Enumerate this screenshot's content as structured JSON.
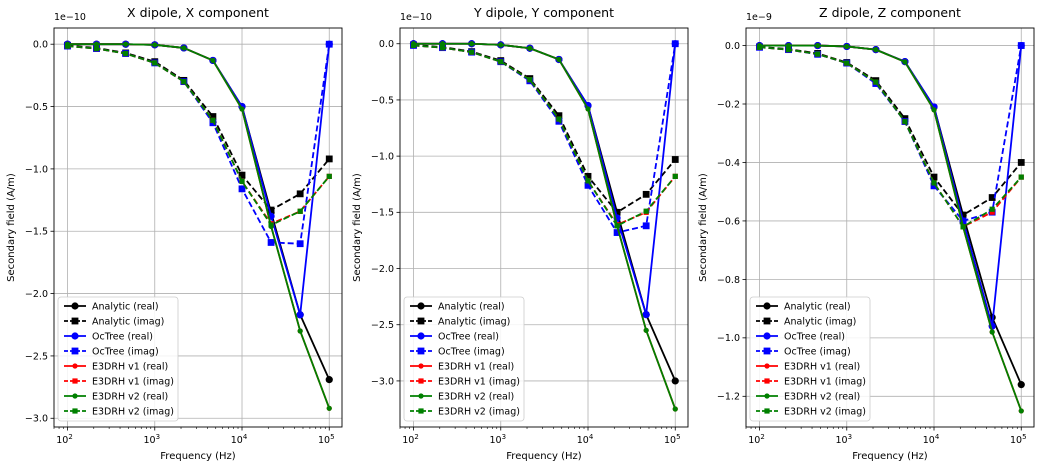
{
  "chart_data": [
    {
      "type": "line",
      "title": "X dipole, X component",
      "xlabel": "Frequency (Hz)",
      "ylabel": "Secondary field (A/m)",
      "xscale": "log",
      "xlim": [
        70,
        140000
      ],
      "ylim": [
        -3.07,
        0.13
      ],
      "scale_label": "1e−10",
      "xticks": [
        {
          "v": 100,
          "base": "10",
          "exp": "2"
        },
        {
          "v": 1000,
          "base": "10",
          "exp": "3"
        },
        {
          "v": 10000,
          "base": "10",
          "exp": "4"
        },
        {
          "v": 100000,
          "base": "10",
          "exp": "5"
        }
      ],
      "yticks": [
        {
          "v": 0,
          "label": "0.0"
        },
        {
          "v": -0.5,
          "label": "−0.5"
        },
        {
          "v": -1.0,
          "label": "−1.0"
        },
        {
          "v": -1.5,
          "label": "−1.5"
        },
        {
          "v": -2.0,
          "label": "−2.0"
        },
        {
          "v": -2.5,
          "label": "−2.5"
        },
        {
          "v": -3.0,
          "label": "−3.0"
        }
      ],
      "grid": true,
      "legend_position": "lower left",
      "x": [
        100,
        215,
        464,
        1000,
        2154,
        4642,
        10000,
        21544,
        46416,
        100000
      ],
      "series": [
        {
          "name": "Analytic (real)",
          "color": "#000000",
          "linestyle": "solid",
          "marker": "circle",
          "values": [
            0.0,
            0.0,
            0.0,
            -0.005,
            -0.03,
            -0.13,
            -0.5,
            -1.35,
            -2.17,
            -2.69
          ]
        },
        {
          "name": "Analytic (imag)",
          "color": "#000000",
          "linestyle": "dashed",
          "marker": "square",
          "values": [
            -0.01,
            -0.03,
            -0.07,
            -0.14,
            -0.29,
            -0.58,
            -1.05,
            -1.33,
            -1.2,
            -0.92
          ]
        },
        {
          "name": "OcTree (real)",
          "color": "#0000ff",
          "linestyle": "solid",
          "marker": "circle",
          "values": [
            0.0,
            0.0,
            0.0,
            -0.005,
            -0.03,
            -0.13,
            -0.5,
            -1.38,
            -2.17,
            0.0
          ]
        },
        {
          "name": "OcTree (imag)",
          "color": "#0000ff",
          "linestyle": "dashed",
          "marker": "square",
          "values": [
            -0.015,
            -0.035,
            -0.075,
            -0.15,
            -0.3,
            -0.63,
            -1.16,
            -1.59,
            -1.6,
            0.0
          ]
        },
        {
          "name": "E3DRH v1 (real)",
          "color": "#ff0000",
          "linestyle": "solid",
          "marker": "circle",
          "values": [
            0.0,
            0.0,
            0.0,
            -0.005,
            -0.03,
            -0.13,
            -0.52,
            -1.46,
            -2.3,
            -2.92
          ]
        },
        {
          "name": "E3DRH v1 (imag)",
          "color": "#ff0000",
          "linestyle": "dashed",
          "marker": "square",
          "values": [
            -0.015,
            -0.035,
            -0.075,
            -0.15,
            -0.3,
            -0.61,
            -1.1,
            -1.44,
            -1.34,
            -1.06
          ]
        },
        {
          "name": "E3DRH v2 (real)",
          "color": "#008000",
          "linestyle": "solid",
          "marker": "circle",
          "values": [
            0.0,
            0.0,
            0.0,
            -0.005,
            -0.03,
            -0.13,
            -0.52,
            -1.46,
            -2.3,
            -2.92
          ]
        },
        {
          "name": "E3DRH v2 (imag)",
          "color": "#008000",
          "linestyle": "dashed",
          "marker": "square",
          "values": [
            -0.015,
            -0.035,
            -0.075,
            -0.15,
            -0.3,
            -0.61,
            -1.1,
            -1.45,
            -1.34,
            -1.06
          ]
        }
      ]
    },
    {
      "type": "line",
      "title": "Y dipole, Y component",
      "xlabel": "Frequency (Hz)",
      "ylabel": "Secondary field (A/m)",
      "xscale": "log",
      "xlim": [
        70,
        140000
      ],
      "ylim": [
        -3.41,
        0.14
      ],
      "scale_label": "1e−10",
      "xticks": [
        {
          "v": 100,
          "base": "10",
          "exp": "2"
        },
        {
          "v": 1000,
          "base": "10",
          "exp": "3"
        },
        {
          "v": 10000,
          "base": "10",
          "exp": "4"
        },
        {
          "v": 100000,
          "base": "10",
          "exp": "5"
        }
      ],
      "yticks": [
        {
          "v": 0,
          "label": "0.0"
        },
        {
          "v": -0.5,
          "label": "−0.5"
        },
        {
          "v": -1.0,
          "label": "−1.0"
        },
        {
          "v": -1.5,
          "label": "−1.5"
        },
        {
          "v": -2.0,
          "label": "−2.0"
        },
        {
          "v": -2.5,
          "label": "−2.5"
        },
        {
          "v": -3.0,
          "label": "−3.0"
        }
      ],
      "grid": true,
      "legend_position": "lower left",
      "x": [
        100,
        215,
        464,
        1000,
        2154,
        4642,
        10000,
        21544,
        46416,
        100000
      ],
      "series": [
        {
          "name": "Analytic (real)",
          "color": "#000000",
          "linestyle": "solid",
          "marker": "circle",
          "values": [
            0.0,
            0.0,
            0.0,
            -0.01,
            -0.04,
            -0.14,
            -0.55,
            -1.5,
            -2.41,
            -3.0
          ]
        },
        {
          "name": "Analytic (imag)",
          "color": "#000000",
          "linestyle": "dashed",
          "marker": "square",
          "values": [
            -0.01,
            -0.03,
            -0.07,
            -0.15,
            -0.31,
            -0.64,
            -1.18,
            -1.5,
            -1.34,
            -1.03
          ]
        },
        {
          "name": "OcTree (real)",
          "color": "#0000ff",
          "linestyle": "solid",
          "marker": "circle",
          "values": [
            0.0,
            0.0,
            0.0,
            -0.01,
            -0.04,
            -0.14,
            -0.55,
            -1.55,
            -2.41,
            0.0
          ]
        },
        {
          "name": "OcTree (imag)",
          "color": "#0000ff",
          "linestyle": "dashed",
          "marker": "square",
          "values": [
            -0.015,
            -0.035,
            -0.075,
            -0.16,
            -0.33,
            -0.69,
            -1.26,
            -1.68,
            -1.62,
            0.0
          ]
        },
        {
          "name": "E3DRH v1 (real)",
          "color": "#ff0000",
          "linestyle": "solid",
          "marker": "circle",
          "values": [
            0.0,
            0.0,
            0.0,
            -0.01,
            -0.04,
            -0.14,
            -0.58,
            -1.62,
            -2.55,
            -3.25
          ]
        },
        {
          "name": "E3DRH v1 (imag)",
          "color": "#ff0000",
          "linestyle": "dashed",
          "marker": "square",
          "values": [
            -0.015,
            -0.035,
            -0.075,
            -0.16,
            -0.32,
            -0.67,
            -1.22,
            -1.61,
            -1.5,
            -1.18
          ]
        },
        {
          "name": "E3DRH v2 (real)",
          "color": "#008000",
          "linestyle": "solid",
          "marker": "circle",
          "values": [
            0.0,
            0.0,
            0.0,
            -0.01,
            -0.04,
            -0.14,
            -0.58,
            -1.62,
            -2.55,
            -3.25
          ]
        },
        {
          "name": "E3DRH v2 (imag)",
          "color": "#008000",
          "linestyle": "dashed",
          "marker": "square",
          "values": [
            -0.015,
            -0.035,
            -0.075,
            -0.16,
            -0.32,
            -0.67,
            -1.22,
            -1.62,
            -1.49,
            -1.18
          ]
        }
      ]
    },
    {
      "type": "line",
      "title": "Z dipole, Z component",
      "xlabel": "Frequency (Hz)",
      "ylabel": "Secondary field (A/m)",
      "xscale": "log",
      "xlim": [
        70,
        140000
      ],
      "ylim": [
        -1.305,
        0.06
      ],
      "scale_label": "1e−9",
      "xticks": [
        {
          "v": 100,
          "base": "10",
          "exp": "2"
        },
        {
          "v": 1000,
          "base": "10",
          "exp": "3"
        },
        {
          "v": 10000,
          "base": "10",
          "exp": "4"
        },
        {
          "v": 100000,
          "base": "10",
          "exp": "5"
        }
      ],
      "yticks": [
        {
          "v": 0,
          "label": "0.0"
        },
        {
          "v": -0.2,
          "label": "−0.2"
        },
        {
          "v": -0.4,
          "label": "−0.4"
        },
        {
          "v": -0.6,
          "label": "−0.6"
        },
        {
          "v": -0.8,
          "label": "−0.8"
        },
        {
          "v": -1.0,
          "label": "−1.0"
        },
        {
          "v": -1.2,
          "label": "−1.2"
        }
      ],
      "grid": true,
      "legend_position": "lower left",
      "x": [
        100,
        215,
        464,
        1000,
        2154,
        4642,
        10000,
        21544,
        46416,
        100000
      ],
      "series": [
        {
          "name": "Analytic (real)",
          "color": "#000000",
          "linestyle": "solid",
          "marker": "circle",
          "values": [
            0.0,
            0.0,
            0.0,
            -0.003,
            -0.014,
            -0.055,
            -0.21,
            -0.58,
            -0.93,
            -1.16
          ]
        },
        {
          "name": "Analytic (imag)",
          "color": "#000000",
          "linestyle": "dashed",
          "marker": "square",
          "values": [
            -0.005,
            -0.012,
            -0.027,
            -0.058,
            -0.12,
            -0.25,
            -0.45,
            -0.58,
            -0.52,
            -0.4
          ]
        },
        {
          "name": "OcTree (real)",
          "color": "#0000ff",
          "linestyle": "solid",
          "marker": "circle",
          "values": [
            0.0,
            0.0,
            0.0,
            -0.003,
            -0.014,
            -0.055,
            -0.21,
            -0.6,
            -0.96,
            0.0
          ]
        },
        {
          "name": "OcTree (imag)",
          "color": "#0000ff",
          "linestyle": "dashed",
          "marker": "square",
          "values": [
            -0.006,
            -0.014,
            -0.03,
            -0.06,
            -0.13,
            -0.26,
            -0.48,
            -0.6,
            -0.57,
            0.0
          ]
        },
        {
          "name": "E3DRH v1 (real)",
          "color": "#ff0000",
          "linestyle": "solid",
          "marker": "circle",
          "values": [
            0.0,
            0.0,
            0.0,
            -0.003,
            -0.014,
            -0.056,
            -0.22,
            -0.62,
            -0.98,
            -1.25
          ]
        },
        {
          "name": "E3DRH v1 (imag)",
          "color": "#ff0000",
          "linestyle": "dashed",
          "marker": "square",
          "values": [
            -0.006,
            -0.014,
            -0.029,
            -0.06,
            -0.125,
            -0.26,
            -0.47,
            -0.62,
            -0.57,
            -0.45
          ]
        },
        {
          "name": "E3DRH v2 (real)",
          "color": "#008000",
          "linestyle": "solid",
          "marker": "circle",
          "values": [
            0.0,
            0.0,
            0.0,
            -0.003,
            -0.014,
            -0.056,
            -0.22,
            -0.62,
            -0.98,
            -1.25
          ]
        },
        {
          "name": "E3DRH v2 (imag)",
          "color": "#008000",
          "linestyle": "dashed",
          "marker": "square",
          "values": [
            -0.006,
            -0.014,
            -0.029,
            -0.06,
            -0.125,
            -0.26,
            -0.47,
            -0.62,
            -0.56,
            -0.45
          ]
        }
      ]
    }
  ]
}
